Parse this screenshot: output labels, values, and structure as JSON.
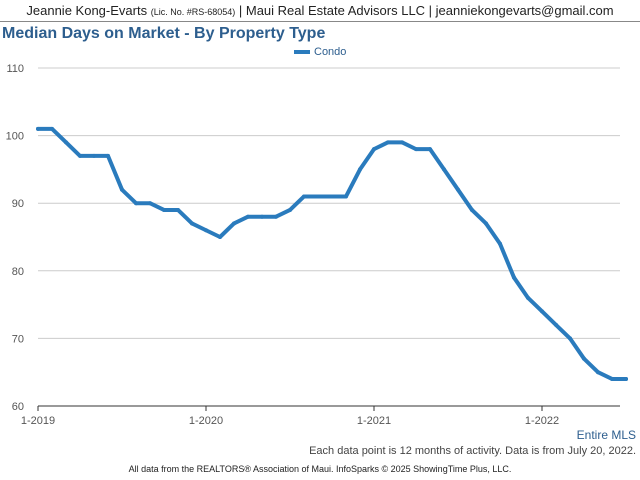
{
  "header": {
    "agent": "Jeannie Kong-Evarts",
    "license": "(Lic. No. #RS-68054)",
    "brokerage_email": "| Maui Real Estate Advisors LLC | jeanniekongevarts@gmail.com"
  },
  "scope_label": "Entire MLS",
  "note": "Each data point is 12 months of activity. Data is from July 20, 2022.",
  "footer": "All data from the REALTORS® Association of Maui. InfoSparks © 2025 ShowingTime Plus, LLC.",
  "colors": {
    "series": "#2a7bbd",
    "title": "#2d5e8e",
    "grid": "#cccccc"
  },
  "chart_data": {
    "type": "line",
    "title": "Median Days on Market - By Property Type",
    "xlabel": "",
    "ylabel": "",
    "ylim": [
      60,
      110
    ],
    "yticks": [
      60,
      70,
      80,
      90,
      100,
      110
    ],
    "xticks": [
      "1-2019",
      "1-2020",
      "1-2021",
      "1-2022"
    ],
    "xlim": [
      "2019-01",
      "2022-07"
    ],
    "grid": true,
    "legend": "top-center",
    "x": [
      "2019-01",
      "2019-02",
      "2019-03",
      "2019-04",
      "2019-05",
      "2019-06",
      "2019-07",
      "2019-08",
      "2019-09",
      "2019-10",
      "2019-11",
      "2019-12",
      "2020-01",
      "2020-02",
      "2020-03",
      "2020-04",
      "2020-05",
      "2020-06",
      "2020-07",
      "2020-08",
      "2020-09",
      "2020-10",
      "2020-11",
      "2020-12",
      "2021-01",
      "2021-02",
      "2021-03",
      "2021-04",
      "2021-05",
      "2021-06",
      "2021-07",
      "2021-08",
      "2021-09",
      "2021-10",
      "2021-11",
      "2021-12",
      "2022-01",
      "2022-02",
      "2022-03",
      "2022-04",
      "2022-05",
      "2022-06",
      "2022-07"
    ],
    "series": [
      {
        "name": "Condo",
        "values": [
          101,
          101,
          99,
          97,
          97,
          97,
          92,
          90,
          90,
          89,
          89,
          87,
          86,
          85,
          87,
          88,
          88,
          88,
          89,
          91,
          91,
          91,
          91,
          95,
          98,
          99,
          99,
          98,
          98,
          95,
          92,
          89,
          87,
          84,
          79,
          76,
          74,
          72,
          70,
          67,
          65,
          64,
          64
        ]
      }
    ]
  }
}
